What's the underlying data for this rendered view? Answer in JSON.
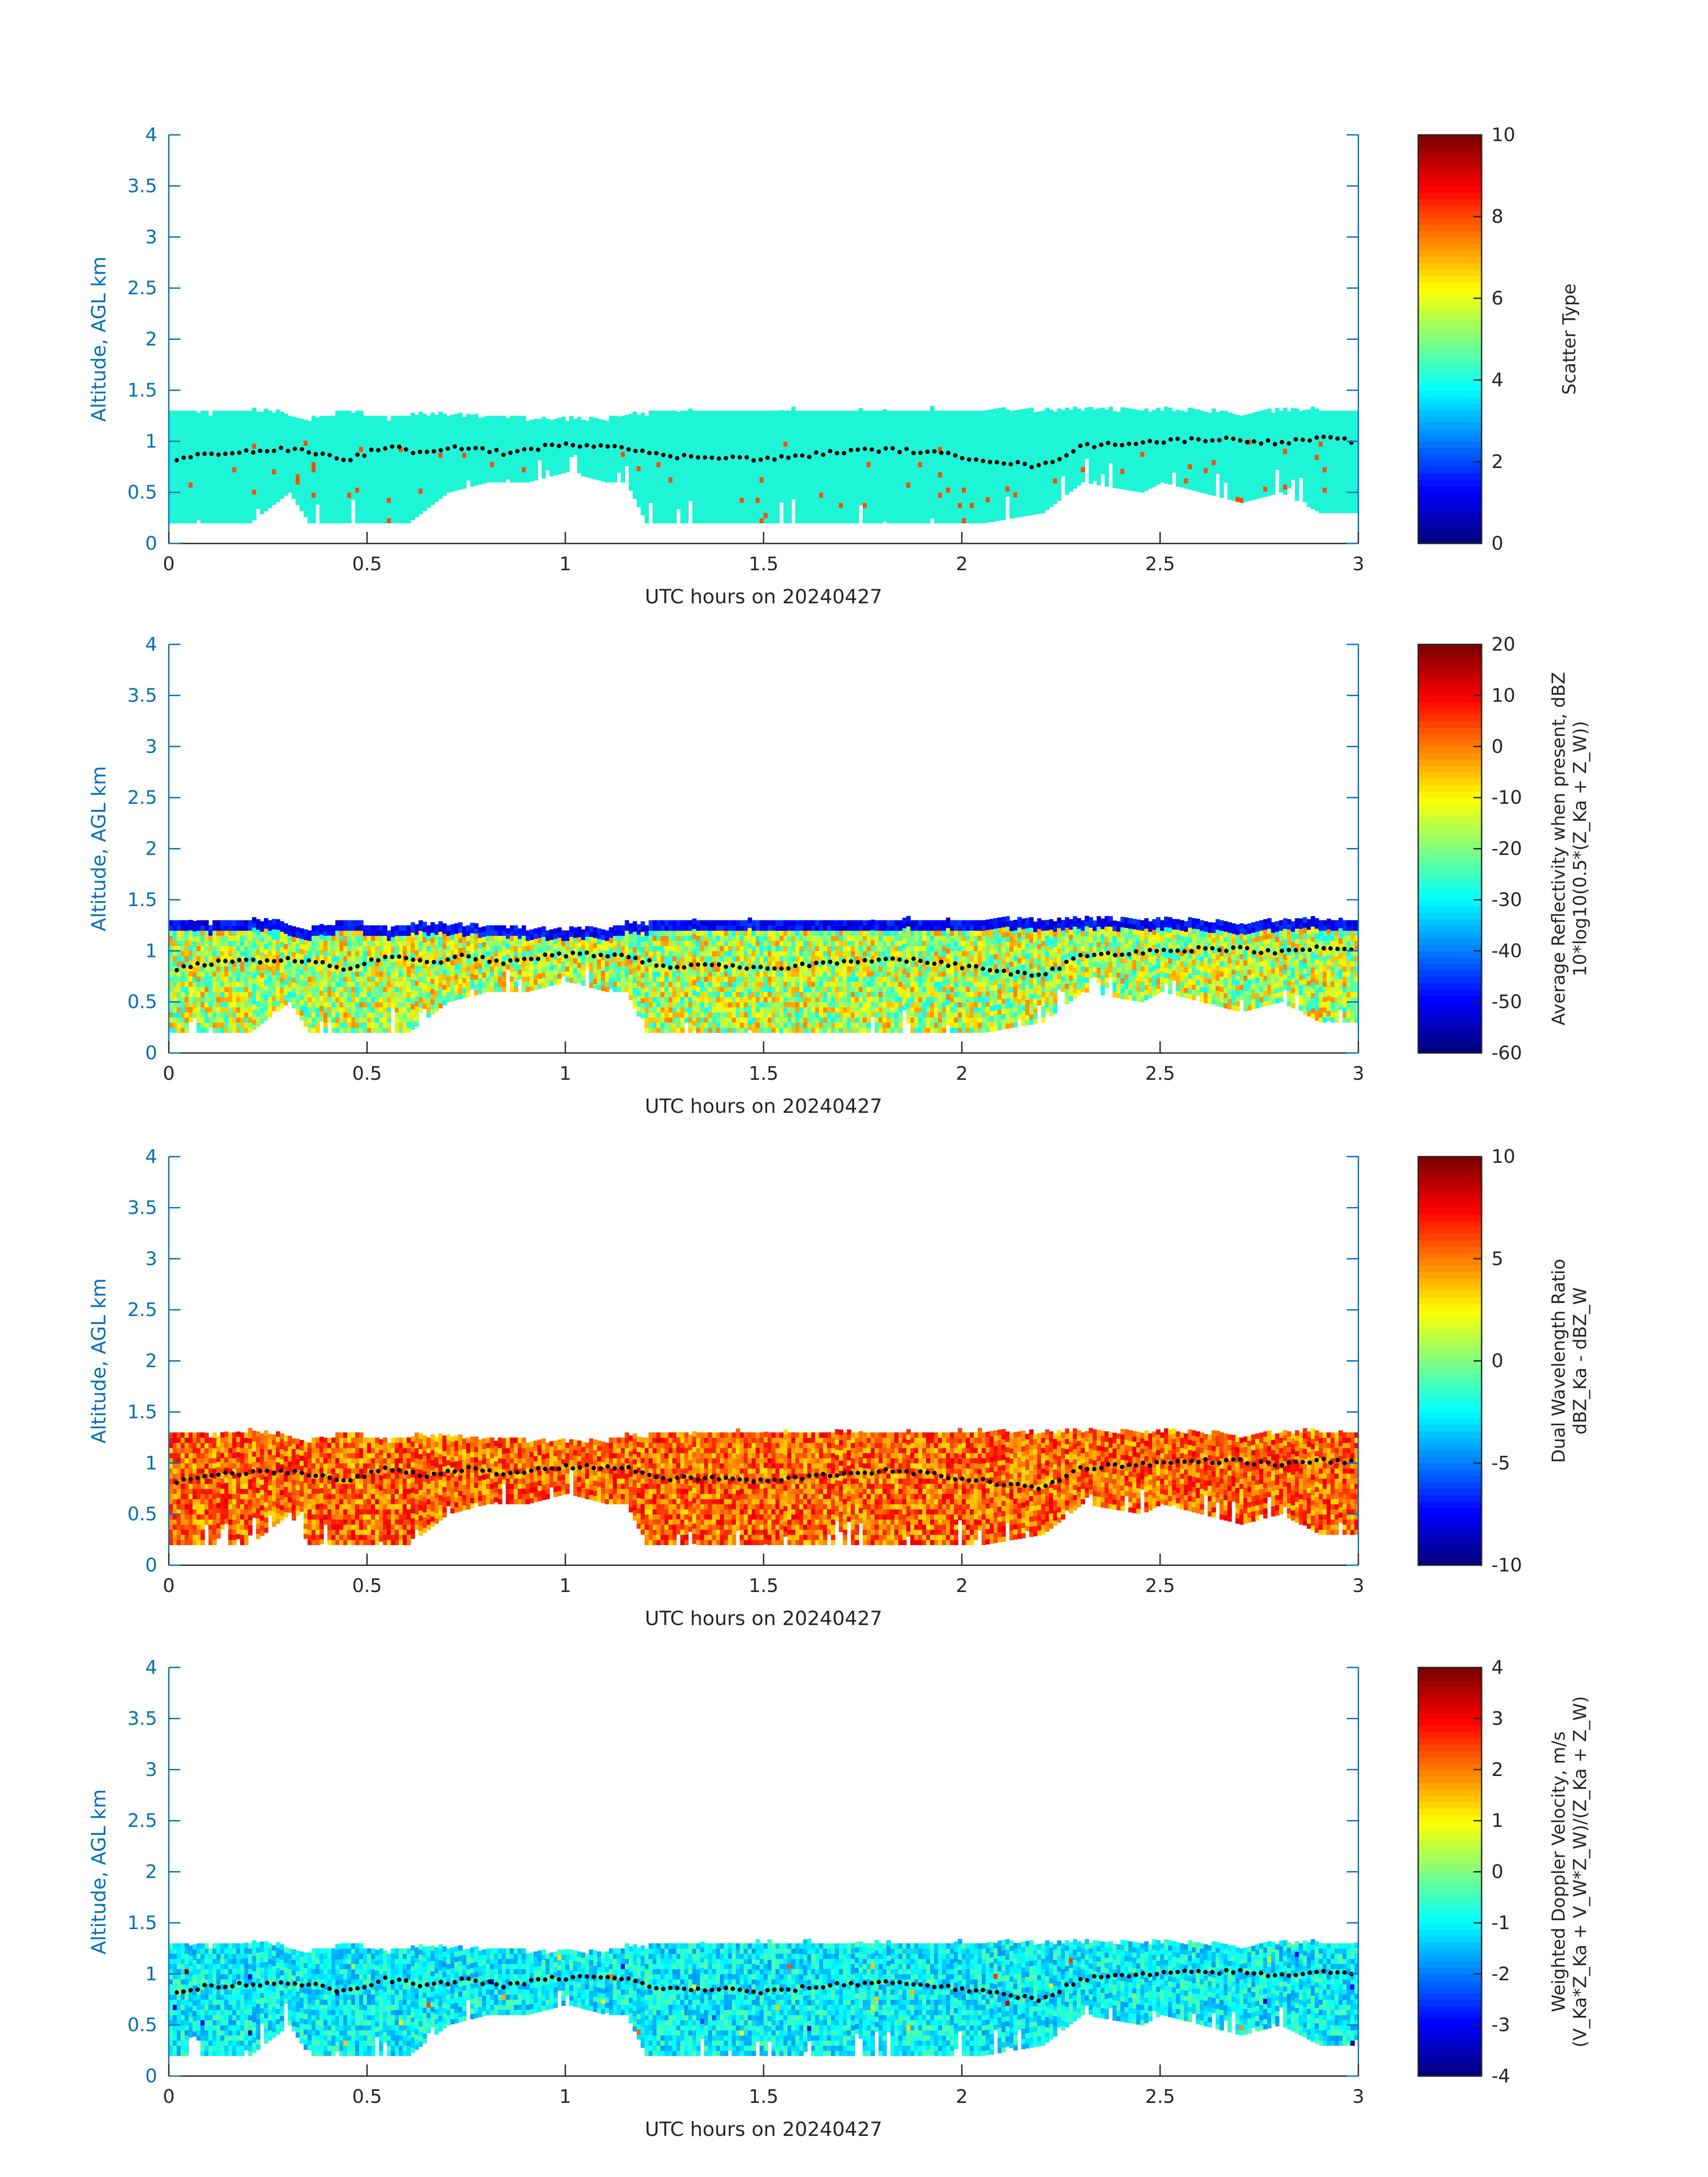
{
  "colors": {
    "axis_y": "#0072BD",
    "axis_x": "#262626",
    "dots": "#000000",
    "scatter_fill": "#1ef5d7"
  },
  "colormap": "jet",
  "chart_data": [
    {
      "type": "heatmap",
      "title": "",
      "xlabel": "UTC hours on 20240427",
      "ylabel": "Altitude, AGL km",
      "xlim": [
        0,
        3
      ],
      "ylim": [
        0,
        4
      ],
      "xticks": [
        "0",
        "0.5",
        "1",
        "1.5",
        "2",
        "2.5",
        "3"
      ],
      "yticks": [
        "0",
        "0.5",
        "1",
        "1.5",
        "2",
        "2.5",
        "3",
        "3.5",
        "4"
      ],
      "colorbar": {
        "label_lines": [
          "Scatter Type"
        ],
        "range": [
          0,
          10
        ],
        "ticks": [
          "0",
          "2",
          "4",
          "6",
          "8",
          "10"
        ]
      },
      "cloud_value": 4,
      "occasional_value": 8
    },
    {
      "type": "heatmap",
      "title": "",
      "xlabel": "UTC hours on 20240427",
      "ylabel": "Altitude, AGL km",
      "xlim": [
        0,
        3
      ],
      "ylim": [
        0,
        4
      ],
      "xticks": [
        "0",
        "0.5",
        "1",
        "1.5",
        "2",
        "2.5",
        "3"
      ],
      "yticks": [
        "0",
        "0.5",
        "1",
        "1.5",
        "2",
        "2.5",
        "3",
        "3.5",
        "4"
      ],
      "colorbar": {
        "label_lines": [
          "Average Reflectivity when present, dBZ",
          "10*log10(0.5*(Z_Ka + Z_W))"
        ],
        "range": [
          -60,
          20
        ],
        "ticks": [
          "-60",
          "-50",
          "-40",
          "-30",
          "-20",
          "-10",
          "0",
          "10",
          "20"
        ]
      },
      "typical_range": [
        -30,
        0
      ]
    },
    {
      "type": "heatmap",
      "title": "",
      "xlabel": "UTC hours on 20240427",
      "ylabel": "Altitude, AGL km",
      "xlim": [
        0,
        3
      ],
      "ylim": [
        0,
        4
      ],
      "xticks": [
        "0",
        "0.5",
        "1",
        "1.5",
        "2",
        "2.5",
        "3"
      ],
      "yticks": [
        "0",
        "0.5",
        "1",
        "1.5",
        "2",
        "2.5",
        "3",
        "3.5",
        "4"
      ],
      "colorbar": {
        "label_lines": [
          "Dual Wavelength Ratio",
          "dBZ_Ka - dBZ_W"
        ],
        "range": [
          -10,
          10
        ],
        "ticks": [
          "-10",
          "-5",
          "0",
          "5",
          "10"
        ]
      },
      "typical_range": [
        3,
        8
      ]
    },
    {
      "type": "heatmap",
      "title": "",
      "xlabel": "UTC hours on 20240427",
      "ylabel": "Altitude, AGL km",
      "xlim": [
        0,
        3
      ],
      "ylim": [
        0,
        4
      ],
      "xticks": [
        "0",
        "0.5",
        "1",
        "1.5",
        "2",
        "2.5",
        "3"
      ],
      "yticks": [
        "0",
        "0.5",
        "1",
        "1.5",
        "2",
        "2.5",
        "3",
        "3.5",
        "4"
      ],
      "colorbar": {
        "label_lines": [
          "Weighted Doppler Velocity, m/s",
          "(V_Ka*Z_Ka + V_W*Z_W)/(Z_Ka + Z_W)"
        ],
        "range": [
          -4,
          4
        ],
        "ticks": [
          "-4",
          "-3",
          "-2",
          "-1",
          "0",
          "1",
          "2",
          "3",
          "4"
        ]
      },
      "typical_range": [
        -1.8,
        -0.3
      ]
    }
  ],
  "cloud_profile": {
    "x_hours": [
      0,
      0.1,
      0.2,
      0.3,
      0.35,
      0.45,
      0.55,
      0.6,
      0.7,
      0.8,
      0.9,
      1.0,
      1.1,
      1.15,
      1.2,
      1.4,
      1.6,
      1.8,
      1.95,
      2.05,
      2.2,
      2.3,
      2.45,
      2.5,
      2.6,
      2.7,
      2.8,
      2.9,
      3.0
    ],
    "top_km": [
      1.28,
      1.25,
      1.3,
      1.25,
      1.2,
      1.28,
      1.2,
      1.25,
      1.25,
      1.22,
      1.2,
      1.2,
      1.2,
      1.25,
      1.25,
      1.3,
      1.3,
      1.3,
      1.3,
      1.3,
      1.28,
      1.3,
      1.28,
      1.3,
      1.28,
      1.25,
      1.28,
      1.3,
      1.3
    ],
    "base_km": [
      0.2,
      0.2,
      0.2,
      0.5,
      0.2,
      0.2,
      0.2,
      0.2,
      0.5,
      0.6,
      0.6,
      0.7,
      0.6,
      0.6,
      0.2,
      0.2,
      0.2,
      0.2,
      0.2,
      0.2,
      0.3,
      0.6,
      0.5,
      0.6,
      0.5,
      0.4,
      0.5,
      0.3,
      0.3
    ]
  },
  "dots_profile": {
    "x_hours": [
      0,
      0.1,
      0.2,
      0.3,
      0.35,
      0.45,
      0.55,
      0.65,
      0.75,
      0.85,
      0.95,
      1.05,
      1.15,
      1.25,
      1.4,
      1.5,
      1.7,
      1.8,
      1.9,
      2.0,
      2.1,
      2.2,
      2.3,
      2.4,
      2.5,
      2.6,
      2.7,
      2.8,
      2.9,
      3.0
    ],
    "alt_km": [
      0.8,
      0.88,
      0.9,
      0.92,
      0.9,
      0.82,
      0.95,
      0.88,
      0.95,
      0.88,
      0.95,
      0.97,
      0.95,
      0.85,
      0.85,
      0.82,
      0.9,
      0.92,
      0.9,
      0.85,
      0.8,
      0.75,
      0.95,
      0.98,
      1.0,
      1.02,
      1.02,
      0.98,
      1.03,
      1.0
    ]
  }
}
